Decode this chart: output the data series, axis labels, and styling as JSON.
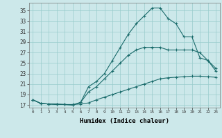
{
  "xlabel": "Humidex (Indice chaleur)",
  "background_color": "#cce8ea",
  "grid_color": "#99cccc",
  "line_color": "#1a6b6b",
  "xlim": [
    -0.5,
    23.5
  ],
  "ylim": [
    16.5,
    36.5
  ],
  "yticks": [
    17,
    19,
    21,
    23,
    25,
    27,
    29,
    31,
    33,
    35
  ],
  "xticks": [
    0,
    1,
    2,
    3,
    4,
    5,
    6,
    7,
    8,
    9,
    10,
    11,
    12,
    13,
    14,
    15,
    16,
    17,
    18,
    19,
    20,
    21,
    22,
    23
  ],
  "line1_x": [
    0,
    1,
    2,
    3,
    4,
    5,
    6,
    7,
    8,
    9,
    10,
    11,
    12,
    13,
    14,
    15,
    16,
    17,
    18,
    19,
    20,
    21,
    22,
    23
  ],
  "line1_y": [
    18.0,
    17.3,
    17.2,
    17.1,
    17.1,
    17.1,
    17.2,
    17.4,
    18.0,
    18.5,
    19.0,
    19.5,
    20.0,
    20.5,
    21.0,
    21.5,
    22.0,
    22.2,
    22.3,
    22.4,
    22.5,
    22.5,
    22.4,
    22.3
  ],
  "line2_x": [
    0,
    1,
    2,
    3,
    4,
    5,
    6,
    7,
    8,
    9,
    10,
    11,
    12,
    13,
    14,
    15,
    16,
    17,
    18,
    19,
    20,
    21,
    22,
    23
  ],
  "line2_y": [
    18.0,
    17.3,
    17.2,
    17.2,
    17.1,
    17.0,
    17.5,
    19.5,
    20.5,
    22.0,
    23.5,
    25.0,
    26.5,
    27.5,
    28.0,
    28.0,
    28.0,
    27.5,
    27.5,
    27.5,
    27.5,
    27.0,
    25.5,
    24.0
  ],
  "line3_x": [
    0,
    1,
    2,
    3,
    4,
    5,
    6,
    7,
    8,
    9,
    10,
    11,
    12,
    13,
    14,
    15,
    16,
    17,
    18,
    19,
    20,
    21,
    22,
    23
  ],
  "line3_y": [
    18.0,
    17.3,
    17.2,
    17.1,
    17.1,
    17.0,
    17.5,
    20.5,
    21.5,
    23.0,
    25.5,
    28.0,
    30.5,
    32.5,
    34.0,
    35.5,
    35.5,
    33.5,
    32.5,
    30.0,
    30.0,
    26.0,
    25.5,
    23.5
  ]
}
